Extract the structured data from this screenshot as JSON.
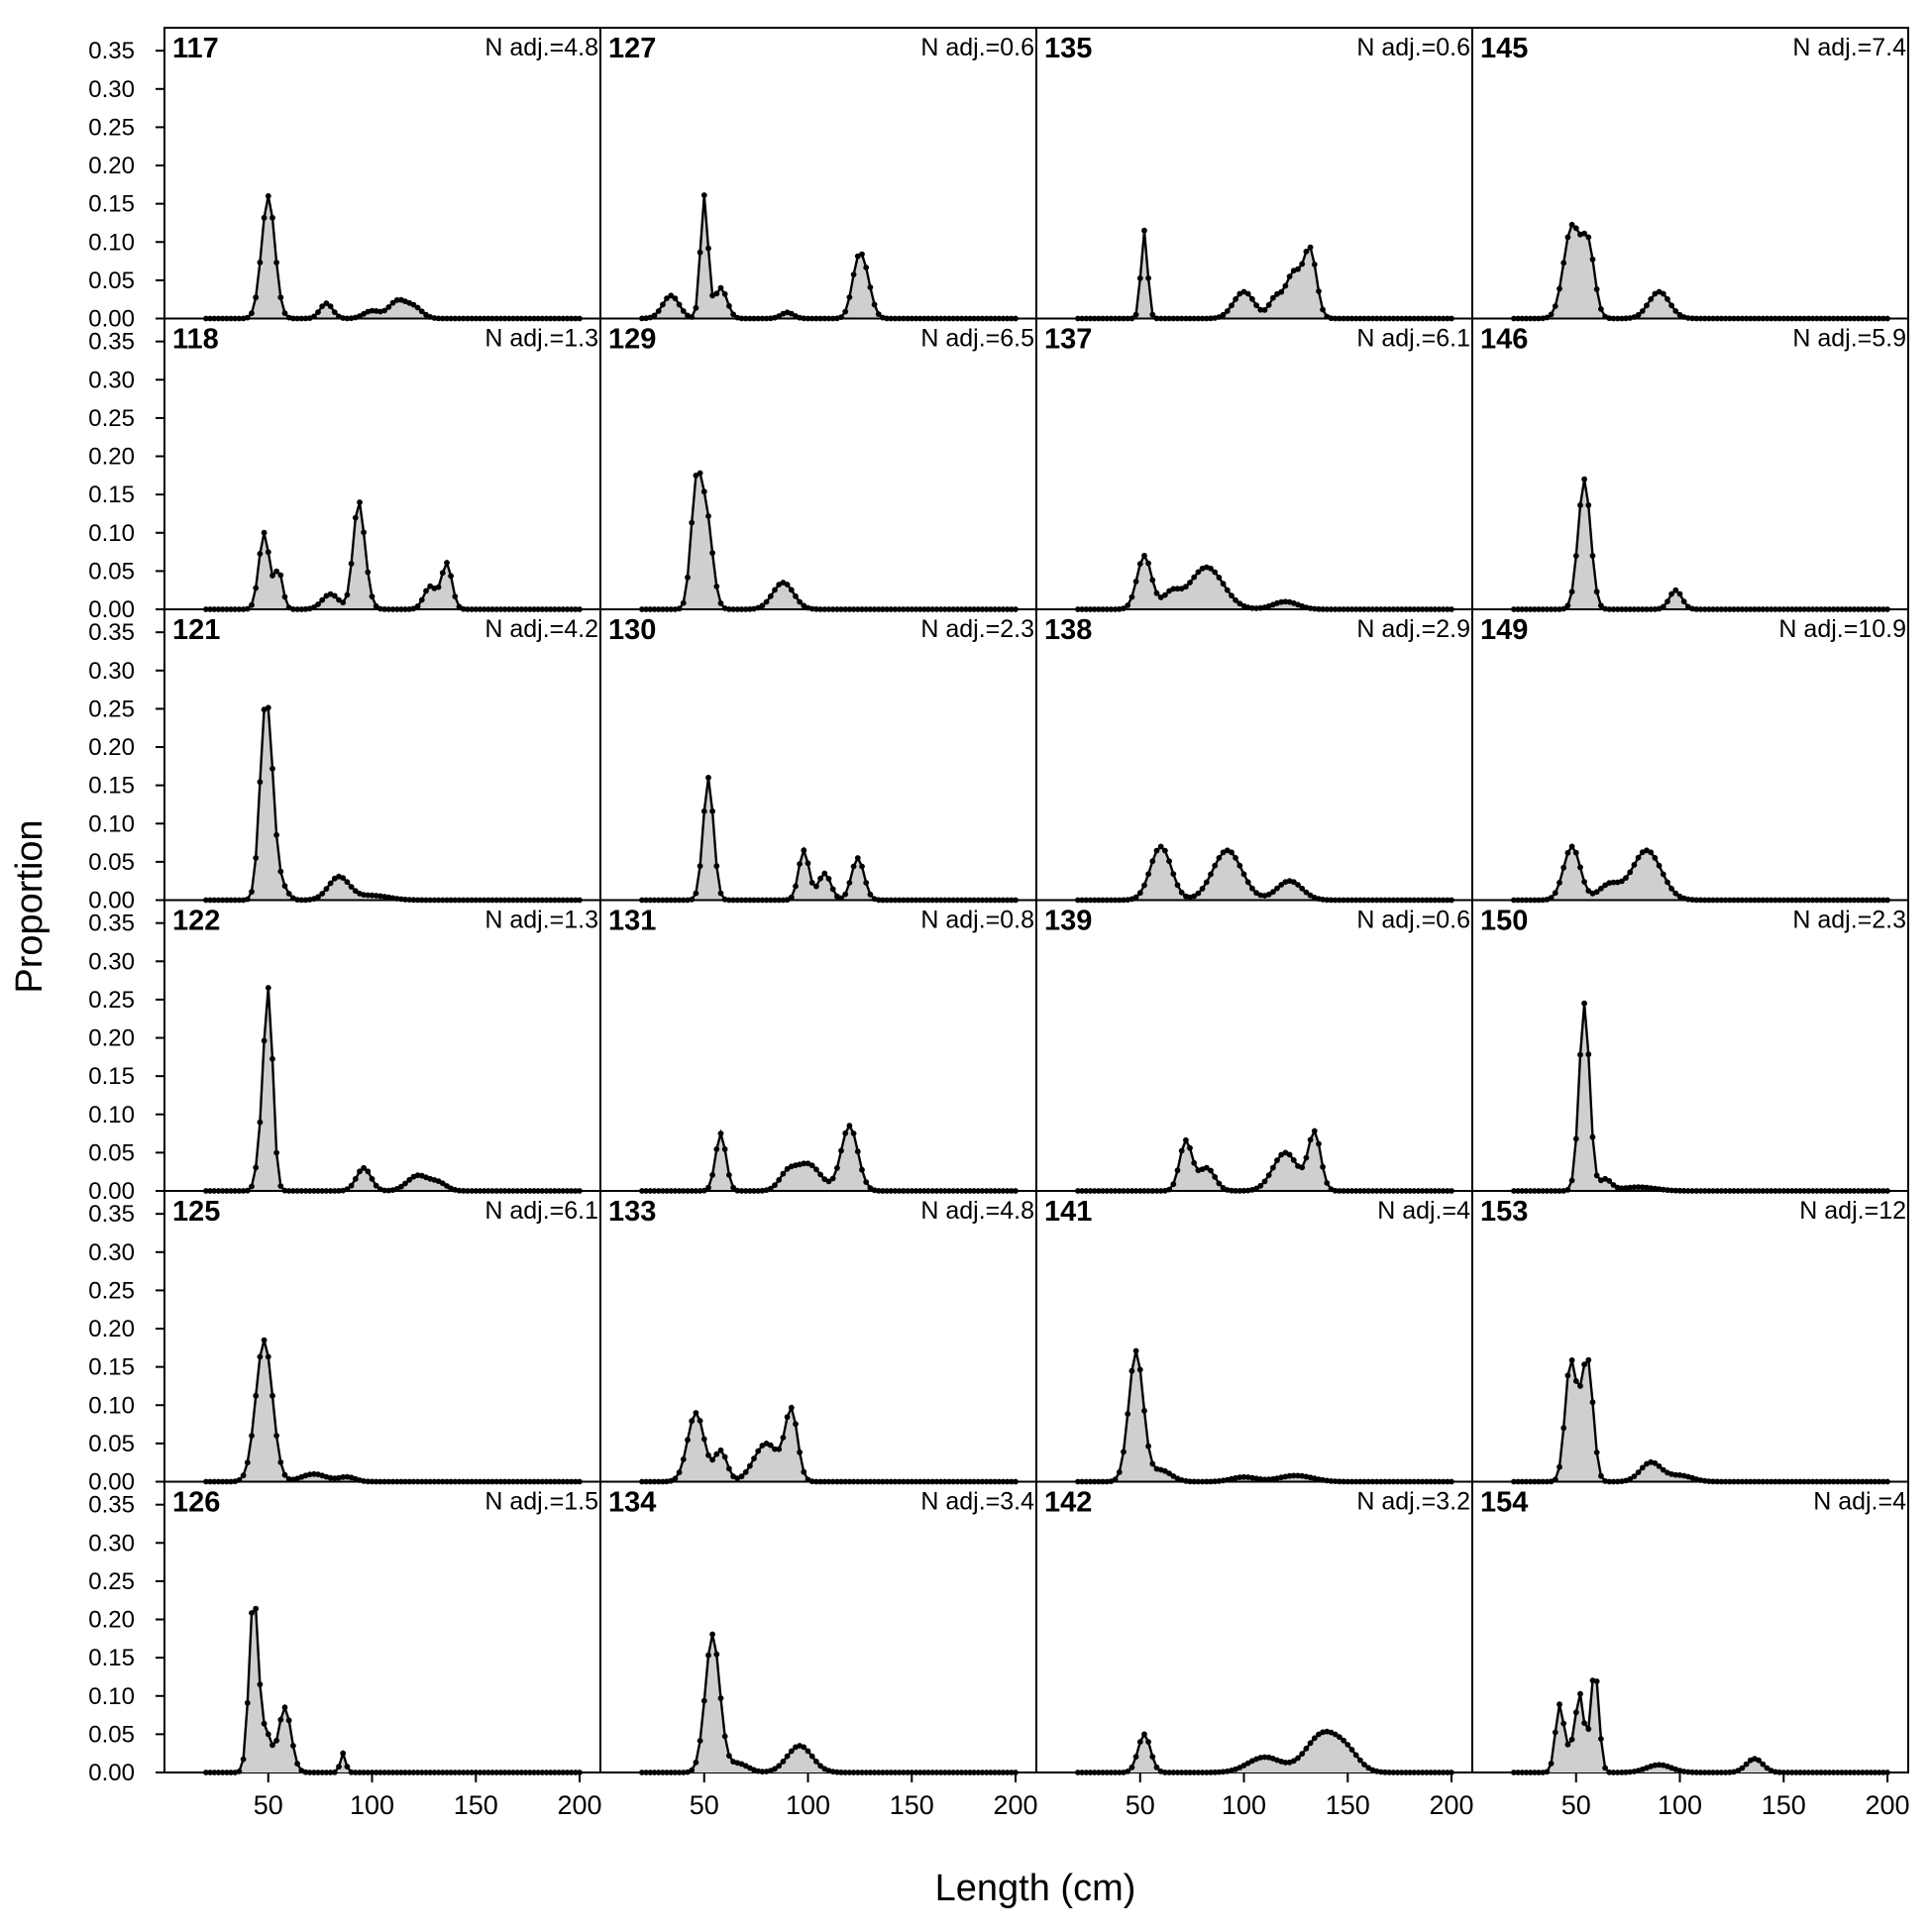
{
  "chart_data": {
    "type": "area",
    "xlabel": "Length (cm)",
    "ylabel": "Proportion",
    "xlim": [
      0,
      210
    ],
    "ylim": [
      0,
      0.38
    ],
    "x_ticks": [
      50,
      100,
      150,
      200
    ],
    "x_tick_labels": [
      "50",
      "100",
      "150",
      "200"
    ],
    "y_ticks": [
      0,
      0.05,
      0.1,
      0.15,
      0.2,
      0.25,
      0.3,
      0.35
    ],
    "y_tick_labels": [
      "0.00",
      "0.05",
      "0.10",
      "0.15",
      "0.20",
      "0.25",
      "0.30",
      "0.35"
    ],
    "grid": false,
    "layout": {
      "columns": 4,
      "rows": 6,
      "order": "column-major"
    },
    "fill_color": "#cfcfcf",
    "line_color": "#000000",
    "panels": [
      {
        "id": "117",
        "nadj": "N adj.=4.8",
        "peaks": [
          [
            50,
            0.16,
            3.2
          ],
          [
            78,
            0.02,
            3
          ],
          [
            100,
            0.01,
            4
          ],
          [
            112,
            0.022,
            4
          ],
          [
            120,
            0.015,
            4
          ]
        ]
      },
      {
        "id": "118",
        "nadj": "N adj.=1.3",
        "peaks": [
          [
            48,
            0.1,
            2.5
          ],
          [
            55,
            0.05,
            2
          ],
          [
            93,
            0.09,
            2.5
          ],
          [
            95,
            0.06,
            3
          ],
          [
            128,
            0.03,
            3
          ],
          [
            136,
            0.06,
            2.5
          ],
          [
            80,
            0.02,
            4
          ]
        ]
      },
      {
        "id": "121",
        "nadj": "N adj.=4.2",
        "peaks": [
          [
            48,
            0.19,
            2.5
          ],
          [
            51,
            0.12,
            2.5
          ],
          [
            56,
            0.02,
            3
          ],
          [
            84,
            0.03,
            5
          ],
          [
            100,
            0.006,
            8
          ]
        ]
      },
      {
        "id": "122",
        "nadj": "N adj.=1.3",
        "peaks": [
          [
            50,
            0.26,
            2.2
          ],
          [
            46,
            0.04,
            2
          ],
          [
            96,
            0.03,
            3.5
          ],
          [
            122,
            0.02,
            5
          ],
          [
            132,
            0.01,
            4
          ]
        ]
      },
      {
        "id": "125",
        "nadj": "N adj.=6.1",
        "peaks": [
          [
            48,
            0.185,
            4
          ],
          [
            72,
            0.01,
            6
          ],
          [
            88,
            0.006,
            4
          ]
        ]
      },
      {
        "id": "126",
        "nadj": "N adj.=1.5",
        "peaks": [
          [
            43,
            0.23,
            2.2
          ],
          [
            49,
            0.05,
            2.5
          ],
          [
            58,
            0.085,
            3
          ],
          [
            86,
            0.025,
            1.3
          ]
        ]
      },
      {
        "id": "127",
        "nadj": "N adj.=0.6",
        "peaks": [
          [
            34,
            0.03,
            4
          ],
          [
            50,
            0.16,
            1.8
          ],
          [
            58,
            0.04,
            3
          ],
          [
            90,
            0.008,
            3
          ],
          [
            124,
            0.065,
            3
          ],
          [
            128,
            0.04,
            3
          ]
        ]
      },
      {
        "id": "129",
        "nadj": "N adj.=6.5",
        "peaks": [
          [
            46,
            0.145,
            2.5
          ],
          [
            51,
            0.12,
            3
          ],
          [
            88,
            0.035,
            5
          ]
        ]
      },
      {
        "id": "130",
        "nadj": "N adj.=2.3",
        "peaks": [
          [
            52,
            0.16,
            2.5
          ],
          [
            98,
            0.065,
            2.5
          ],
          [
            108,
            0.035,
            3
          ],
          [
            124,
            0.055,
            3
          ]
        ]
      },
      {
        "id": "131",
        "nadj": "N adj.=0.8",
        "peaks": [
          [
            58,
            0.075,
            2.5
          ],
          [
            100,
            0.035,
            6
          ],
          [
            120,
            0.085,
            4
          ],
          [
            90,
            0.02,
            4
          ]
        ]
      },
      {
        "id": "133",
        "nadj": "N adj.=4.8",
        "peaks": [
          [
            46,
            0.09,
            4
          ],
          [
            58,
            0.04,
            3
          ],
          [
            80,
            0.05,
            6
          ],
          [
            92,
            0.09,
            3
          ]
        ]
      },
      {
        "id": "134",
        "nadj": "N adj.=3.4",
        "peaks": [
          [
            54,
            0.18,
            3.5
          ],
          [
            66,
            0.012,
            5
          ],
          [
            96,
            0.035,
            6
          ]
        ]
      },
      {
        "id": "135",
        "nadj": "N adj.=0.6",
        "peaks": [
          [
            52,
            0.115,
            1.6
          ],
          [
            100,
            0.035,
            5
          ],
          [
            124,
            0.06,
            4
          ],
          [
            132,
            0.085,
            3
          ],
          [
            115,
            0.025,
            3
          ]
        ]
      },
      {
        "id": "137",
        "nadj": "N adj.=6.1",
        "peaks": [
          [
            52,
            0.07,
            3.5
          ],
          [
            82,
            0.055,
            8
          ],
          [
            120,
            0.01,
            6
          ],
          [
            65,
            0.02,
            4
          ]
        ]
      },
      {
        "id": "138",
        "nadj": "N adj.=2.9",
        "peaks": [
          [
            60,
            0.07,
            5
          ],
          [
            92,
            0.065,
            7
          ],
          [
            122,
            0.025,
            6
          ]
        ]
      },
      {
        "id": "139",
        "nadj": "N adj.=0.6",
        "peaks": [
          [
            72,
            0.065,
            3
          ],
          [
            82,
            0.03,
            4
          ],
          [
            120,
            0.05,
            6
          ],
          [
            134,
            0.075,
            3
          ]
        ]
      },
      {
        "id": "141",
        "nadj": "N adj.=4",
        "peaks": [
          [
            48,
            0.17,
            3.5
          ],
          [
            60,
            0.015,
            5
          ],
          [
            100,
            0.006,
            6
          ],
          [
            125,
            0.008,
            8
          ]
        ]
      },
      {
        "id": "142",
        "nadj": "N adj.=3.2",
        "peaks": [
          [
            52,
            0.05,
            3
          ],
          [
            110,
            0.02,
            8
          ],
          [
            138,
            0.05,
            8
          ],
          [
            150,
            0.02,
            6
          ]
        ]
      },
      {
        "id": "145",
        "nadj": "N adj.=7.4",
        "peaks": [
          [
            48,
            0.12,
            4
          ],
          [
            56,
            0.09,
            3
          ],
          [
            90,
            0.035,
            5
          ]
        ]
      },
      {
        "id": "146",
        "nadj": "N adj.=5.9",
        "peaks": [
          [
            54,
            0.17,
            3
          ],
          [
            98,
            0.025,
            3
          ]
        ]
      },
      {
        "id": "149",
        "nadj": "N adj.=10.9",
        "peaks": [
          [
            48,
            0.07,
            4
          ],
          [
            84,
            0.065,
            7
          ],
          [
            66,
            0.02,
            5
          ]
        ]
      },
      {
        "id": "150",
        "nadj": "N adj.=2.3",
        "peaks": [
          [
            54,
            0.245,
            2.5
          ],
          [
            64,
            0.015,
            3
          ],
          [
            80,
            0.005,
            8
          ]
        ]
      },
      {
        "id": "153",
        "nadj": "N adj.=12",
        "peaks": [
          [
            47,
            0.14,
            2.5
          ],
          [
            56,
            0.13,
            2.5
          ],
          [
            52,
            0.07,
            3
          ],
          [
            86,
            0.025,
            5
          ],
          [
            100,
            0.008,
            6
          ]
        ]
      },
      {
        "id": "154",
        "nadj": "N adj.=4",
        "peaks": [
          [
            42,
            0.085,
            2
          ],
          [
            52,
            0.09,
            2
          ],
          [
            59,
            0.135,
            2
          ],
          [
            48,
            0.03,
            3
          ],
          [
            90,
            0.01,
            6
          ],
          [
            136,
            0.018,
            4
          ]
        ]
      }
    ]
  }
}
